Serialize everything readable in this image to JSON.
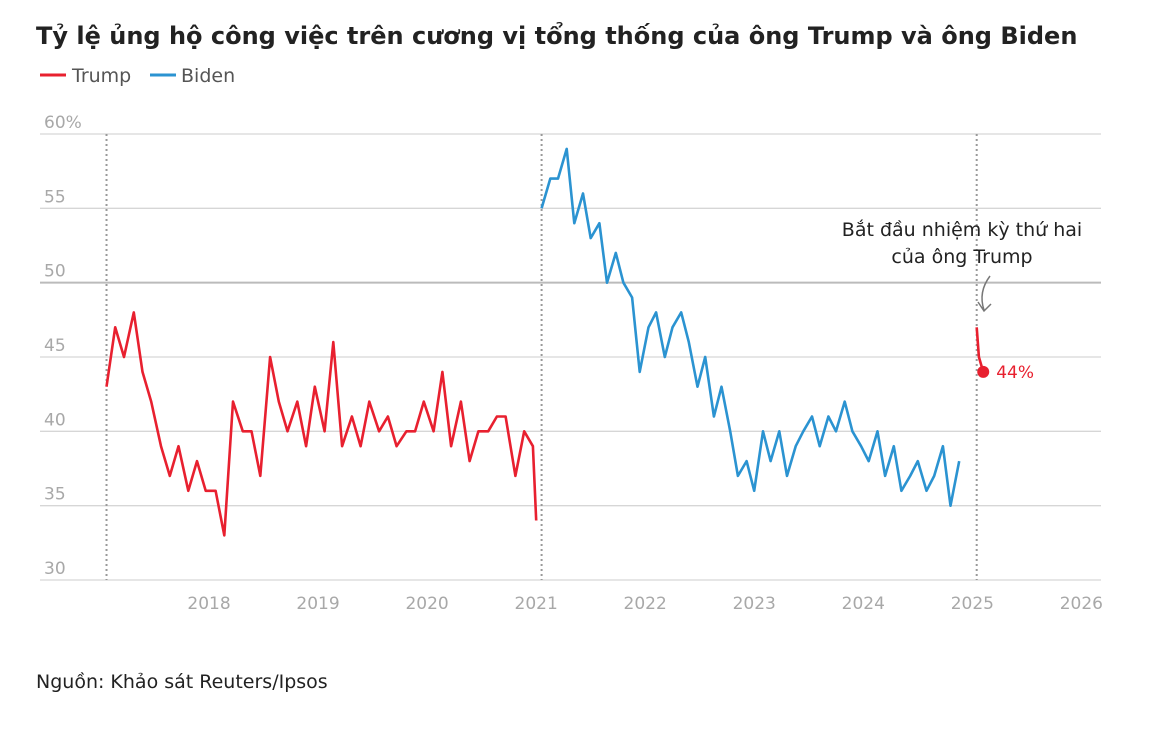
{
  "chart_data": {
    "type": "line",
    "title": "Tỷ lệ ủng hộ công việc trên cương vị tổng thống của ông Trump và ông Biden",
    "source": "Nguồn: Khảo sát Reuters/Ipsos",
    "annotation": [
      "Bắt đầu nhiệm kỳ thứ hai",
      "của ông Trump"
    ],
    "xlim": [
      2016.45,
      2026.18
    ],
    "xticks": [
      2018,
      2019,
      2020,
      2021,
      2022,
      2023,
      2024,
      2025,
      2026
    ],
    "ylim": [
      30,
      60
    ],
    "yticks": [
      30,
      35,
      40,
      45,
      50,
      55,
      {
        "value": 60,
        "label": "60%"
      }
    ],
    "grid": true,
    "vlines": [
      2017.06,
      2021.05,
      2025.04
    ],
    "series": [
      {
        "name": "Trump",
        "color": "#e8202f",
        "x": [
          2017.06,
          2017.14,
          2017.22,
          2017.31,
          2017.39,
          2017.47,
          2017.56,
          2017.64,
          2017.72,
          2017.81,
          2017.89,
          2017.97,
          2018.06,
          2018.14,
          2018.22,
          2018.31,
          2018.39,
          2018.47,
          2018.56,
          2018.64,
          2018.72,
          2018.81,
          2018.89,
          2018.97,
          2019.06,
          2019.14,
          2019.22,
          2019.31,
          2019.39,
          2019.47,
          2019.56,
          2019.64,
          2019.72,
          2019.81,
          2019.89,
          2019.97,
          2020.06,
          2020.14,
          2020.22,
          2020.31,
          2020.39,
          2020.47,
          2020.56,
          2020.64,
          2020.72,
          2020.81,
          2020.89,
          2020.97,
          2021.0,
          2021.02,
          2025.04,
          2025.06,
          2025.1
        ],
        "values": [
          43,
          47,
          45,
          48,
          44,
          42,
          39,
          37,
          39,
          36,
          38,
          36,
          36,
          33,
          42,
          40,
          40,
          37,
          45,
          42,
          40,
          42,
          39,
          43,
          40,
          46,
          39,
          41,
          39,
          42,
          40,
          41,
          39,
          40,
          40,
          42,
          40,
          44,
          39,
          42,
          38,
          40,
          40,
          41,
          41,
          37,
          40,
          39,
          34,
          null,
          47,
          45,
          44
        ],
        "value_labels": [
          null,
          null,
          null,
          null,
          null,
          null,
          null,
          null,
          null,
          null,
          null,
          null,
          null,
          null,
          null,
          null,
          null,
          null,
          null,
          null,
          null,
          null,
          null,
          null,
          null,
          null,
          null,
          null,
          null,
          null,
          null,
          null,
          null,
          null,
          null,
          null,
          null,
          null,
          null,
          null,
          null,
          null,
          null,
          null,
          null,
          null,
          null,
          null,
          null,
          null,
          null,
          null,
          "44%"
        ]
      },
      {
        "name": "Biden",
        "color": "#2b93d1",
        "x": [
          2021.05,
          2021.13,
          2021.2,
          2021.28,
          2021.35,
          2021.43,
          2021.5,
          2021.58,
          2021.65,
          2021.73,
          2021.8,
          2021.88,
          2021.95,
          2022.03,
          2022.1,
          2022.18,
          2022.25,
          2022.33,
          2022.4,
          2022.48,
          2022.55,
          2022.63,
          2022.7,
          2022.78,
          2022.85,
          2022.93,
          2023.0,
          2023.08,
          2023.15,
          2023.23,
          2023.3,
          2023.38,
          2023.45,
          2023.53,
          2023.6,
          2023.68,
          2023.75,
          2023.83,
          2023.9,
          2023.98,
          2024.05,
          2024.13,
          2024.2,
          2024.28,
          2024.35,
          2024.43,
          2024.5,
          2024.58,
          2024.65,
          2024.73,
          2024.8,
          2024.88
        ],
        "values": [
          55,
          57,
          57,
          59,
          54,
          56,
          53,
          54,
          50,
          52,
          50,
          49,
          44,
          47,
          48,
          45,
          47,
          48,
          46,
          43,
          45,
          41,
          43,
          40,
          37,
          38,
          36,
          40,
          38,
          40,
          37,
          39,
          40,
          41,
          39,
          41,
          40,
          42,
          40,
          39,
          38,
          40,
          37,
          39,
          36,
          37,
          38,
          36,
          37,
          39,
          35,
          38
        ]
      }
    ]
  }
}
